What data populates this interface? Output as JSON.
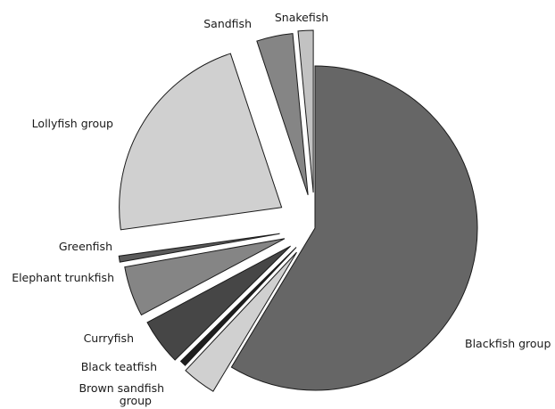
{
  "chart_data": {
    "type": "pie",
    "title": "",
    "legend": "none",
    "slices": [
      {
        "name": "Blackfish group",
        "value": 58.6,
        "color": "#666666"
      },
      {
        "name": "Brown sandfish group",
        "value": 3.4,
        "color": "#d0d0d0"
      },
      {
        "name": "Black teatfish",
        "value": 0.6,
        "color": "#1e1e1e"
      },
      {
        "name": "Curryfish",
        "value": 4.6,
        "color": "#464646"
      },
      {
        "name": "Elephant trunkfish",
        "value": 5.0,
        "color": "#858585"
      },
      {
        "name": "Greenfish",
        "value": 0.6,
        "color": "#5a5a5a"
      },
      {
        "name": "Lollyfish group",
        "value": 22.1,
        "color": "#d0d0d0"
      },
      {
        "name": "Sandfish",
        "value": 3.6,
        "color": "#858585"
      },
      {
        "name": "Snakefish",
        "value": 1.5,
        "color": "#c2c2c2"
      }
    ]
  }
}
